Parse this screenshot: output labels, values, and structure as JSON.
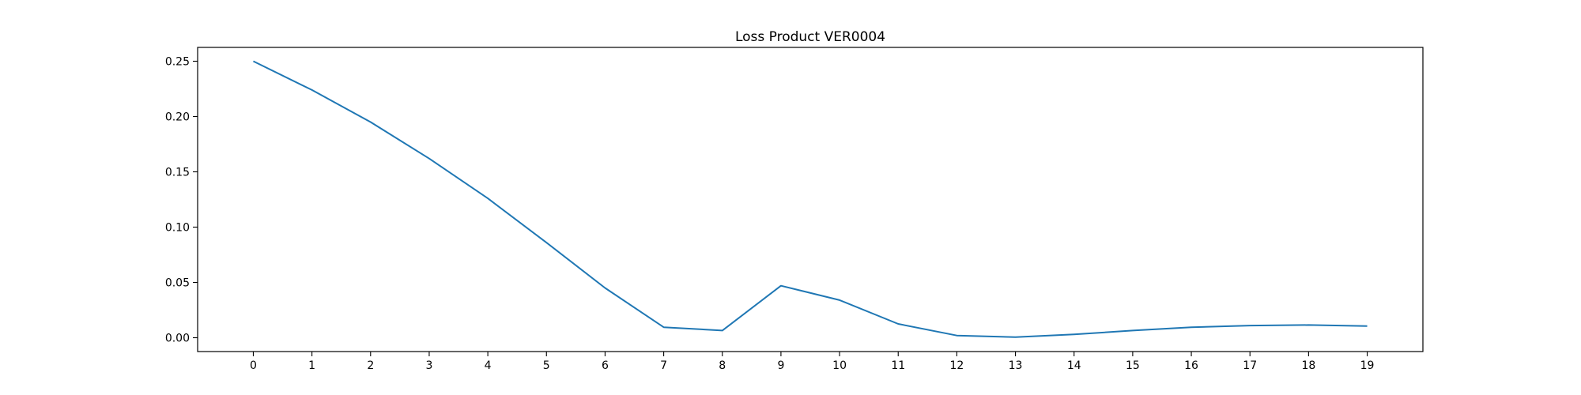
{
  "chart_data": {
    "type": "line",
    "title": "Loss Product VER0004",
    "xlabel": "",
    "ylabel": "",
    "x": [
      0,
      1,
      2,
      3,
      4,
      5,
      6,
      7,
      8,
      9,
      10,
      11,
      12,
      13,
      14,
      15,
      16,
      17,
      18,
      19
    ],
    "xlim": [
      -0.95,
      19.95
    ],
    "ylim": [
      -0.0125,
      0.2625
    ],
    "yticks": [
      "0.00",
      "0.05",
      "0.10",
      "0.15",
      "0.20",
      "0.25"
    ],
    "xticks": [
      "0",
      "1",
      "2",
      "3",
      "4",
      "5",
      "6",
      "7",
      "8",
      "9",
      "10",
      "11",
      "12",
      "13",
      "14",
      "15",
      "16",
      "17",
      "18",
      "19"
    ],
    "grid": false,
    "legend": "none",
    "series": [
      {
        "color": "#1f77b4",
        "values": [
          0.25,
          0.224,
          0.195,
          0.162,
          0.126,
          0.086,
          0.045,
          0.0095,
          0.0065,
          0.047,
          0.034,
          0.0125,
          0.002,
          0.0005,
          0.003,
          0.0065,
          0.0095,
          0.011,
          0.0115,
          0.0105
        ]
      }
    ]
  }
}
